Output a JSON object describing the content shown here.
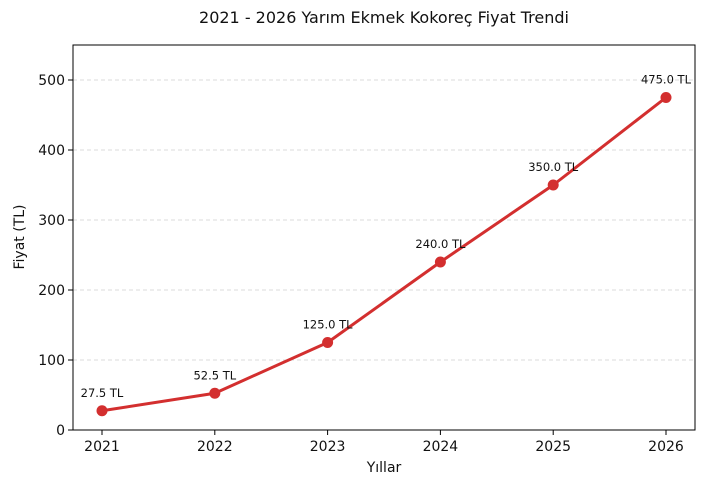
{
  "chart_data": {
    "type": "line",
    "title": "2021 - 2026 Yarım Ekmek Kokoreç Fiyat Trendi",
    "xlabel": "Yıllar",
    "ylabel": "Fiyat (TL)",
    "x": [
      "2021",
      "2022",
      "2023",
      "2024",
      "2025",
      "2026"
    ],
    "series": [
      {
        "values": [
          27.5,
          52.5,
          125.0,
          240.0,
          350.0,
          475.0
        ],
        "labels": [
          "27.5 TL",
          "52.5 TL",
          "125.0 TL",
          "240.0 TL",
          "350.0 TL",
          "475.0 TL"
        ],
        "color": "#d32f2f"
      }
    ],
    "ylim": [
      0,
      550
    ],
    "yticks": [
      "0",
      "100",
      "200",
      "300",
      "400",
      "500"
    ],
    "grid": "horizontal dashed"
  }
}
